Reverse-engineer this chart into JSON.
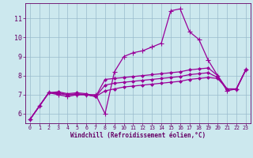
{
  "xlabel": "Windchill (Refroidissement éolien,°C)",
  "background_color": "#cce8ee",
  "grid_color": "#99bbcc",
  "line_color": "#990099",
  "xlim": [
    -0.5,
    23.5
  ],
  "ylim": [
    5.5,
    11.8
  ],
  "xticks": [
    0,
    1,
    2,
    3,
    4,
    5,
    6,
    7,
    8,
    9,
    10,
    11,
    12,
    13,
    14,
    15,
    16,
    17,
    18,
    19,
    20,
    21,
    22,
    23
  ],
  "yticks": [
    6,
    7,
    8,
    9,
    10,
    11
  ],
  "series": [
    [
      5.7,
      6.4,
      7.1,
      7.0,
      6.9,
      7.0,
      7.0,
      7.0,
      6.0,
      8.2,
      9.0,
      9.2,
      9.3,
      9.5,
      9.7,
      11.4,
      11.5,
      10.3,
      9.9,
      8.8,
      8.0,
      7.2,
      7.3,
      8.3
    ],
    [
      5.7,
      6.4,
      7.1,
      7.15,
      7.05,
      7.1,
      7.05,
      6.9,
      7.8,
      7.85,
      7.9,
      7.95,
      8.0,
      8.05,
      8.1,
      8.15,
      8.2,
      8.3,
      8.35,
      8.4,
      8.0,
      7.3,
      7.3,
      8.3
    ],
    [
      5.7,
      6.4,
      7.1,
      7.1,
      7.0,
      7.05,
      7.0,
      6.9,
      7.5,
      7.6,
      7.65,
      7.7,
      7.75,
      7.8,
      7.85,
      7.9,
      7.95,
      8.05,
      8.1,
      8.15,
      7.9,
      7.3,
      7.3,
      8.3
    ],
    [
      5.7,
      6.4,
      7.1,
      7.05,
      7.0,
      7.0,
      7.0,
      6.9,
      7.2,
      7.3,
      7.4,
      7.45,
      7.5,
      7.55,
      7.6,
      7.65,
      7.7,
      7.8,
      7.85,
      7.9,
      7.85,
      7.3,
      7.3,
      8.3
    ]
  ],
  "font_color": "#660066",
  "xlabel_fontsize": 5.5,
  "tick_fontsize_x": 4.8,
  "tick_fontsize_y": 6.0
}
